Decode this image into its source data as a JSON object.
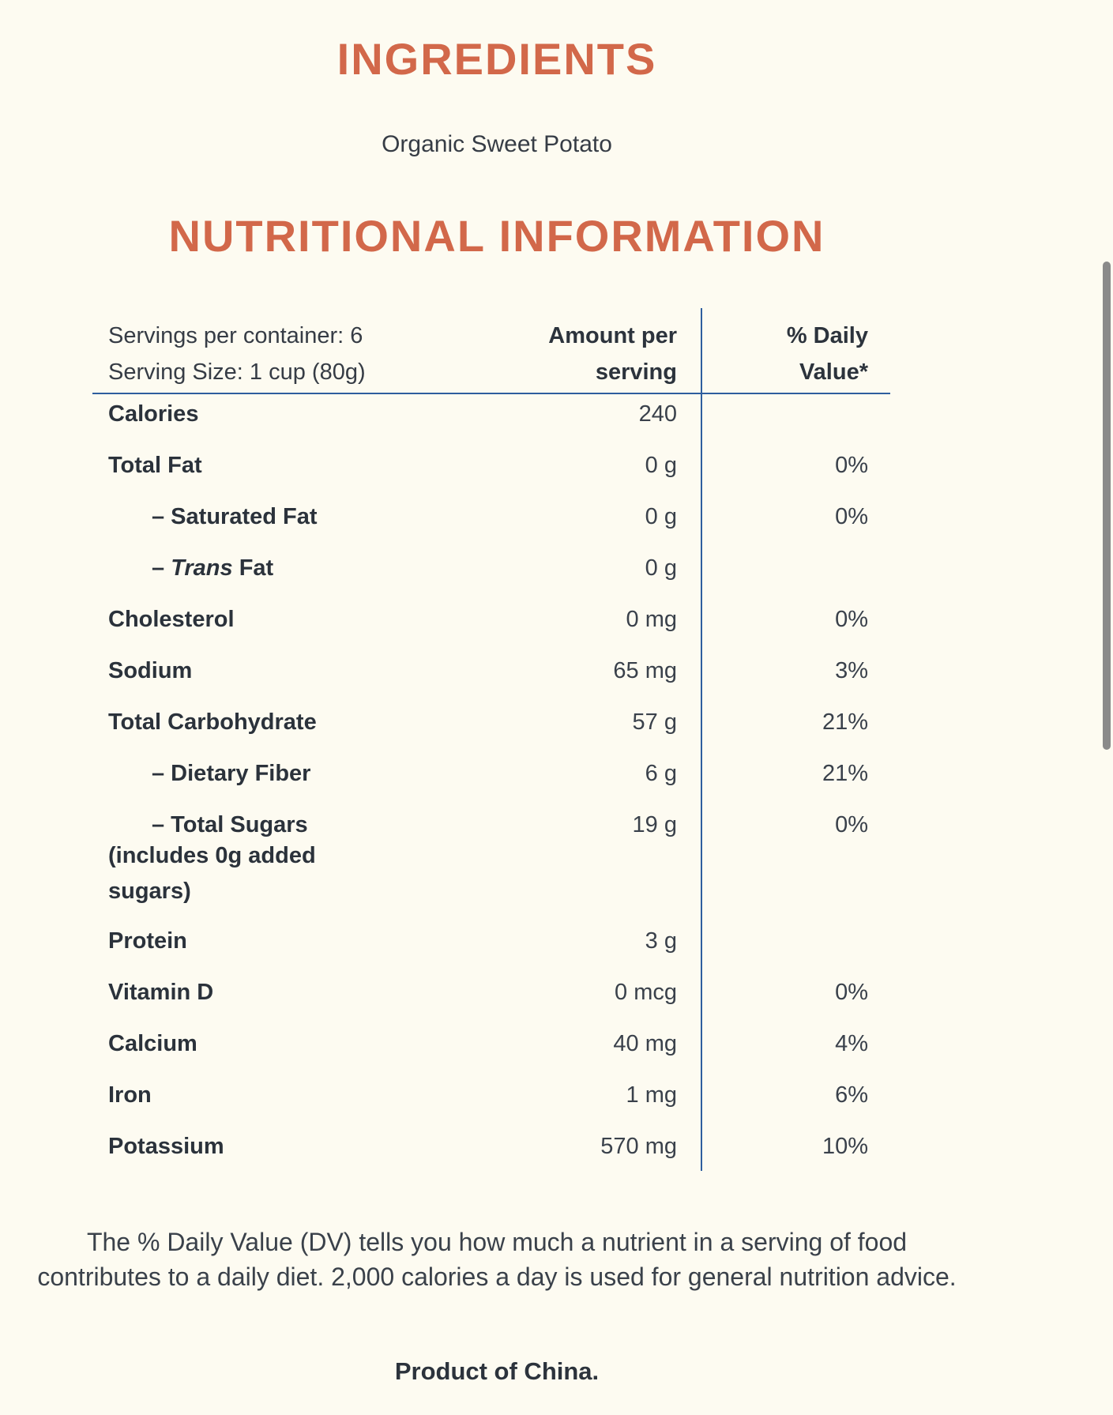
{
  "page": {
    "background_color": "#FDFBF1",
    "accent_color": "#D2684A",
    "text_color": "#2C333C",
    "rule_color": "#2E5E9E",
    "scrollbar_color": "#8A8A8A"
  },
  "ingredients_section": {
    "title": "INGREDIENTS",
    "ingredients_text": "Organic Sweet Potato"
  },
  "nutrition_section": {
    "title": "NUTRITIONAL INFORMATION",
    "header": {
      "servings_line1": "Servings per container: 6",
      "servings_line2": "Serving Size: 1 cup (80g)",
      "amount_header_line1": "Amount per",
      "amount_header_line2": "serving",
      "daily_header_line1": "% Daily",
      "daily_header_line2": "Value*"
    },
    "rows": [
      {
        "indent": false,
        "label_parts": [
          {
            "text": "Calories"
          }
        ],
        "amount": "240",
        "daily": ""
      },
      {
        "indent": false,
        "label_parts": [
          {
            "text": "Total Fat"
          }
        ],
        "amount": "0 g",
        "daily": "0%"
      },
      {
        "indent": true,
        "label_parts": [
          {
            "text": "– Saturated Fat"
          }
        ],
        "amount": "0 g",
        "daily": "0%"
      },
      {
        "indent": true,
        "label_parts": [
          {
            "text": "– "
          },
          {
            "text": "Trans",
            "italic": true
          },
          {
            "text": " Fat"
          }
        ],
        "amount": "0 g",
        "daily": ""
      },
      {
        "indent": false,
        "label_parts": [
          {
            "text": "Cholesterol"
          }
        ],
        "amount": "0 mg",
        "daily": "0%"
      },
      {
        "indent": false,
        "label_parts": [
          {
            "text": "Sodium"
          }
        ],
        "amount": "65 mg",
        "daily": "3%"
      },
      {
        "indent": false,
        "label_parts": [
          {
            "text": "Total Carbohydrate"
          }
        ],
        "amount": "57 g",
        "daily": "21%"
      },
      {
        "indent": true,
        "label_parts": [
          {
            "text": "– Dietary Fiber"
          }
        ],
        "amount": "6 g",
        "daily": "21%"
      },
      {
        "indent": true,
        "label_parts": [
          {
            "text": "– Total Sugars"
          }
        ],
        "note": "(includes 0g added sugars)",
        "amount": "19 g",
        "daily": "0%"
      },
      {
        "indent": false,
        "label_parts": [
          {
            "text": "Protein"
          }
        ],
        "amount": "3 g",
        "daily": ""
      },
      {
        "indent": false,
        "label_parts": [
          {
            "text": "Vitamin D"
          }
        ],
        "amount": "0 mcg",
        "daily": "0%"
      },
      {
        "indent": false,
        "label_parts": [
          {
            "text": "Calcium"
          }
        ],
        "amount": "40 mg",
        "daily": "4%"
      },
      {
        "indent": false,
        "label_parts": [
          {
            "text": "Iron"
          }
        ],
        "amount": "1 mg",
        "daily": "6%"
      },
      {
        "indent": false,
        "label_parts": [
          {
            "text": "Potassium"
          }
        ],
        "amount": "570 mg",
        "daily": "10%"
      }
    ]
  },
  "footer": {
    "daily_value_note": "The % Daily Value (DV) tells you how much a nutrient in a serving of food contributes to a daily diet. 2,000 calories a day is used for general nutrition advice.",
    "origin": "Product of China."
  }
}
